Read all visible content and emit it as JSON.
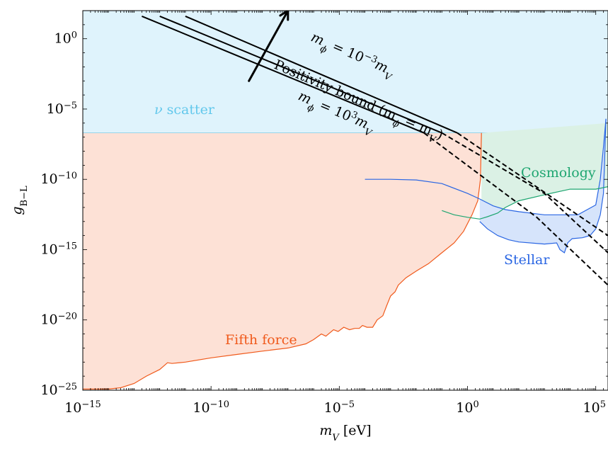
{
  "chart_data": {
    "type": "area",
    "xscale": "log",
    "yscale": "log",
    "xlim": [
      1e-15,
      300000
    ],
    "ylim": [
      1e-25,
      100
    ],
    "xlabel": {
      "main": "m",
      "sub": "V",
      "unit": " [eV]"
    },
    "ylabel": {
      "main": "g",
      "sub": "B−L"
    },
    "xticks": [
      {
        "base": "10",
        "exp": "−15",
        "value": 1e-15
      },
      {
        "base": "10",
        "exp": "−10",
        "value": 1e-10
      },
      {
        "base": "10",
        "exp": "−5",
        "value": 1e-05
      },
      {
        "base": "10",
        "exp": "0",
        "value": 1
      },
      {
        "base": "10",
        "exp": "5",
        "value": 100000
      }
    ],
    "yticks": [
      {
        "base": "10",
        "exp": "0",
        "value": 1
      },
      {
        "base": "10",
        "exp": "−5",
        "value": 1e-05
      },
      {
        "base": "10",
        "exp": "−10",
        "value": 1e-10
      },
      {
        "base": "10",
        "exp": "−15",
        "value": 1e-15
      },
      {
        "base": "10",
        "exp": "−20",
        "value": 1e-20
      },
      {
        "base": "10",
        "exp": "−25",
        "value": 1e-25
      }
    ],
    "regions": {
      "nu_scatter": {
        "label_symbol": "ν",
        "label_text": " scatter",
        "fill": "#dff3fc",
        "stroke": "#63c8ec",
        "label_color": "#63c8ec",
        "boundary": [
          [
            1e-15,
            2e-07
          ],
          [
            20,
            2e-07
          ],
          [
            3000,
            2e-07
          ],
          [
            30000,
            4e-07
          ],
          [
            200000,
            8e-07
          ],
          [
            300000,
            1e-06
          ]
        ]
      },
      "fifth_force": {
        "label": "Fifth force",
        "fill": "#fde1d6",
        "stroke": "#f05a1c",
        "label_color": "#f05a1c",
        "boundary": [
          [
            1e-15,
            1.2e-25
          ],
          [
            1e-14,
            1.2e-25
          ],
          [
            3e-14,
            1.5e-25
          ],
          [
            1e-13,
            3e-25
          ],
          [
            3e-13,
            1e-24
          ],
          [
            1e-12,
            3e-24
          ],
          [
            2e-12,
            9e-24
          ],
          [
            3e-12,
            8e-24
          ],
          [
            1e-11,
            1e-23
          ],
          [
            1e-10,
            2e-23
          ],
          [
            1e-09,
            3.5e-23
          ],
          [
            1e-08,
            6e-23
          ],
          [
            1e-07,
            1e-22
          ],
          [
            5e-07,
            2e-22
          ],
          [
            1e-06,
            4e-22
          ],
          [
            2e-06,
            1e-21
          ],
          [
            3e-06,
            7e-22
          ],
          [
            6e-06,
            2e-21
          ],
          [
            9e-06,
            1.5e-21
          ],
          [
            1.5e-05,
            3e-21
          ],
          [
            2.5e-05,
            2e-21
          ],
          [
            4e-05,
            2.5e-21
          ],
          [
            6e-05,
            2.5e-21
          ],
          [
            8e-05,
            4e-21
          ],
          [
            0.00012,
            3e-21
          ],
          [
            0.0002,
            3e-21
          ],
          [
            0.0003,
            1e-20
          ],
          [
            0.0005,
            2e-20
          ],
          [
            0.0007,
            1e-19
          ],
          [
            0.001,
            5e-19
          ],
          [
            0.0015,
            1e-18
          ],
          [
            0.002,
            3e-18
          ],
          [
            0.004,
            1e-17
          ],
          [
            0.01,
            3e-17
          ],
          [
            0.03,
            1e-16
          ],
          [
            0.1,
            6e-16
          ],
          [
            0.3,
            3e-15
          ],
          [
            0.7,
            2e-14
          ],
          [
            1.5,
            3e-13
          ],
          [
            2.5,
            3e-12
          ],
          [
            3.2,
            1e-10
          ],
          [
            3.5,
            2e-07
          ]
        ]
      },
      "cosmology": {
        "label": "Cosmology",
        "fill": "#dbf1e5",
        "stroke": "#1fa671",
        "label_color": "#1fa671",
        "boundary": [
          [
            0.1,
            6e-13
          ],
          [
            0.3,
            3e-13
          ],
          [
            1,
            2e-13
          ],
          [
            3,
            1.5e-13
          ],
          [
            6,
            2.2e-13
          ],
          [
            15,
            4e-13
          ],
          [
            30,
            1e-12
          ],
          [
            100,
            3e-12
          ],
          [
            1000,
            8e-12
          ],
          [
            10000,
            2e-11
          ],
          [
            100000,
            2e-11
          ],
          [
            300000,
            3e-11
          ]
        ],
        "clip_x": 3.5
      },
      "stellar": {
        "label": "Stellar",
        "fill": "#d6e4fb",
        "stroke": "#2a66e3",
        "label_color": "#2a66e3",
        "boundary": [
          [
            0.0001,
            1e-10
          ],
          [
            0.001,
            1e-10
          ],
          [
            0.01,
            9e-11
          ],
          [
            0.1,
            5e-11
          ],
          [
            1,
            1e-11
          ],
          [
            3,
            4e-12
          ],
          [
            10,
            1.3e-12
          ],
          [
            30,
            7e-13
          ],
          [
            100,
            5e-13
          ],
          [
            1000,
            3e-13
          ],
          [
            20000,
            3e-13
          ],
          [
            100000,
            1.5e-12
          ],
          [
            150000,
            1e-10
          ],
          [
            200000,
            2e-08
          ],
          [
            250000,
            2e-06
          ]
        ],
        "lower": [
          [
            3,
            1e-13
          ],
          [
            6,
            3e-14
          ],
          [
            15,
            1e-14
          ],
          [
            40,
            5e-15
          ],
          [
            100,
            3.5e-15
          ],
          [
            1000,
            2.5e-15
          ],
          [
            3000,
            3e-15
          ],
          [
            4000,
            1e-15
          ],
          [
            6000,
            6e-16
          ],
          [
            8000,
            3e-15
          ],
          [
            12000,
            6e-15
          ],
          [
            30000,
            7e-15
          ],
          [
            60000,
            1e-14
          ],
          [
            100000,
            3e-14
          ],
          [
            150000,
            3e-13
          ],
          [
            200000,
            1e-11
          ],
          [
            250000,
            2e-06
          ]
        ]
      }
    },
    "lines": [
      {
        "label_parts": [
          {
            "t": "m"
          },
          {
            "t": "ϕ",
            "sub": true
          },
          {
            "t": " = 10"
          },
          {
            "t": "−3",
            "sup": true
          },
          {
            "t": "m"
          },
          {
            "t": "V",
            "sub": true
          }
        ],
        "solid": [
          [
            1e-11,
            40
          ],
          [
            0.4,
            2e-07
          ]
        ],
        "dashed": [
          [
            0.4,
            2e-07
          ],
          [
            300000,
            1e-14
          ]
        ]
      },
      {
        "label_parts": [
          {
            "t": "Positivity bound (m"
          },
          {
            "t": "ϕ",
            "sub": true
          },
          {
            "t": " = m"
          },
          {
            "t": "V",
            "sub": true
          },
          {
            "t": ")"
          }
        ],
        "solid": [
          [
            1e-12,
            40
          ],
          [
            0.1,
            2e-07
          ]
        ],
        "dashed": [
          [
            0.1,
            2e-07
          ],
          [
            1000,
            1e-11
          ],
          [
            300000,
            6e-16
          ]
        ]
      },
      {
        "label_parts": [
          {
            "t": "m"
          },
          {
            "t": "ϕ",
            "sub": true
          },
          {
            "t": " = 10"
          },
          {
            "t": "3",
            "sup": true
          },
          {
            "t": "m"
          },
          {
            "t": "V",
            "sub": true
          }
        ],
        "solid": [
          [
            2e-13,
            40
          ],
          [
            0.02,
            2e-07
          ]
        ],
        "dashed": [
          [
            0.02,
            2e-07
          ],
          [
            500,
            2e-13
          ],
          [
            300000,
            3e-18
          ]
        ]
      }
    ],
    "arrow": {
      "from": [
        3e-09,
        0.001
      ],
      "to": [
        1e-07,
        100
      ]
    },
    "grid": false,
    "legend": "none"
  }
}
